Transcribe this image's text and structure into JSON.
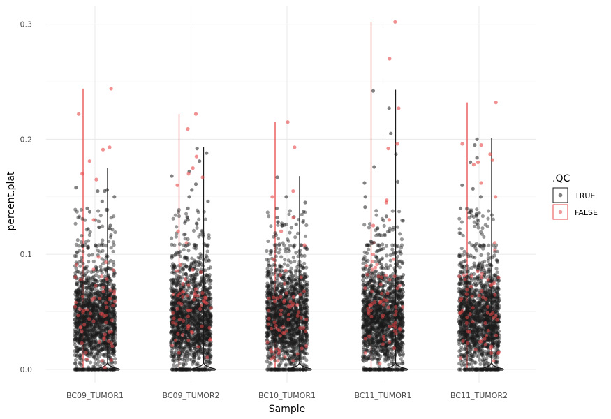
{
  "chart_data": {
    "type": "scatter",
    "subtype": "violin-with-jitter",
    "xlabel": "Sample",
    "ylabel": "percent.plat",
    "categories": [
      "BC09_TUMOR1",
      "BC09_TUMOR2",
      "BC10_TUMOR1",
      "BC11_TUMOR1",
      "BC11_TUMOR2"
    ],
    "ylim": [
      -0.007,
      0.31
    ],
    "yticks": [
      0.0,
      0.1,
      0.2,
      0.3
    ],
    "ytick_labels": [
      "0.0",
      "0.1",
      "0.2",
      "0.3"
    ],
    "grid": true,
    "legend": {
      "title": ".QC",
      "position": "right",
      "entries": [
        {
          "label": "TRUE",
          "color": "#1a1a1a"
        },
        {
          "label": "FALSE",
          "color": "#e8494a"
        }
      ]
    },
    "series": [
      {
        "name": "TRUE",
        "color": "#1a1a1a",
        "max_values": [
          0.175,
          0.193,
          0.168,
          0.243,
          0.201
        ],
        "outliers": [
          [
            0.156,
            0.155,
            0.15,
            0.14,
            0.137,
            0.125,
            0.122,
            0.155,
            0.158,
            0.146
          ],
          [
            0.192,
            0.188,
            0.181,
            0.172,
            0.161,
            0.15,
            0.146,
            0.14,
            0.156,
            0.13,
            0.168
          ],
          [
            0.167,
            0.15,
            0.145,
            0.137,
            0.132,
            0.128,
            0.126,
            0.14,
            0.125
          ],
          [
            0.242,
            0.227,
            0.205,
            0.187,
            0.176,
            0.162,
            0.163,
            0.15,
            0.141,
            0.133
          ],
          [
            0.2,
            0.195,
            0.184,
            0.18,
            0.16,
            0.15,
            0.14,
            0.136,
            0.135,
            0.157
          ]
        ]
      },
      {
        "name": "FALSE",
        "color": "#e8494a",
        "max_values": [
          0.244,
          0.222,
          0.215,
          0.302,
          0.232
        ],
        "outliers": [
          [
            0.244,
            0.222,
            0.193,
            0.191,
            0.181,
            0.17,
            0.165,
            0.13
          ],
          [
            0.222,
            0.209,
            0.185,
            0.17,
            0.167,
            0.175,
            0.16,
            0.12
          ],
          [
            0.215,
            0.193,
            0.155,
            0.15,
            0.132,
            0.12,
            0.108
          ],
          [
            0.302,
            0.27,
            0.227,
            0.196,
            0.192,
            0.147,
            0.145,
            0.13,
            0.125
          ],
          [
            0.232,
            0.196,
            0.195,
            0.187,
            0.182,
            0.18,
            0.178,
            0.162,
            0.15
          ]
        ]
      }
    ]
  }
}
